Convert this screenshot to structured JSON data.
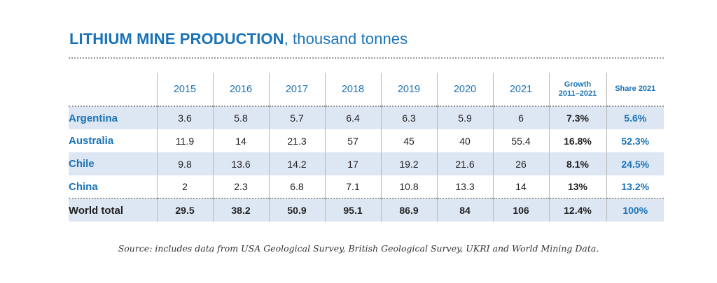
{
  "title": {
    "bold": "LITHIUM MINE PRODUCTION",
    "rest": ", thousand tonnes"
  },
  "table": {
    "headers": [
      "",
      "2015",
      "2016",
      "2017",
      "2018",
      "2019",
      "2020",
      "2021",
      "Growth 2011–2021",
      "Share 2021"
    ],
    "growth_header_line1": "Growth",
    "growth_header_line2": "2011–2021",
    "rows": [
      {
        "label": "Argentina",
        "values": [
          "3.6",
          "5.8",
          "5.7",
          "6.4",
          "6.3",
          "5.9",
          "6"
        ],
        "growth": "7.3%",
        "share": "5.6%"
      },
      {
        "label": "Australia",
        "values": [
          "11.9",
          "14",
          "21.3",
          "57",
          "45",
          "40",
          "55.4"
        ],
        "growth": "16.8%",
        "share": "52.3%"
      },
      {
        "label": "Chile",
        "values": [
          "9.8",
          "13.6",
          "14.2",
          "17",
          "19.2",
          "21.6",
          "26"
        ],
        "growth": "8.1%",
        "share": "24.5%"
      },
      {
        "label": "China",
        "values": [
          "2",
          "2.3",
          "6.8",
          "7.1",
          "10.8",
          "13.3",
          "14"
        ],
        "growth": "13%",
        "share": "13.2%"
      },
      {
        "label": "World total",
        "values": [
          "29.5",
          "38.2",
          "50.9",
          "95.1",
          "86.9",
          "84",
          "106"
        ],
        "growth": "12.4%",
        "share": "100%"
      }
    ]
  },
  "source": "Source: includes data from USA Geological Survey, British Geological Survey, UKRI and World Mining Data.",
  "colors": {
    "accent": "#1a73b8",
    "row_shade": "#dde6f3"
  }
}
